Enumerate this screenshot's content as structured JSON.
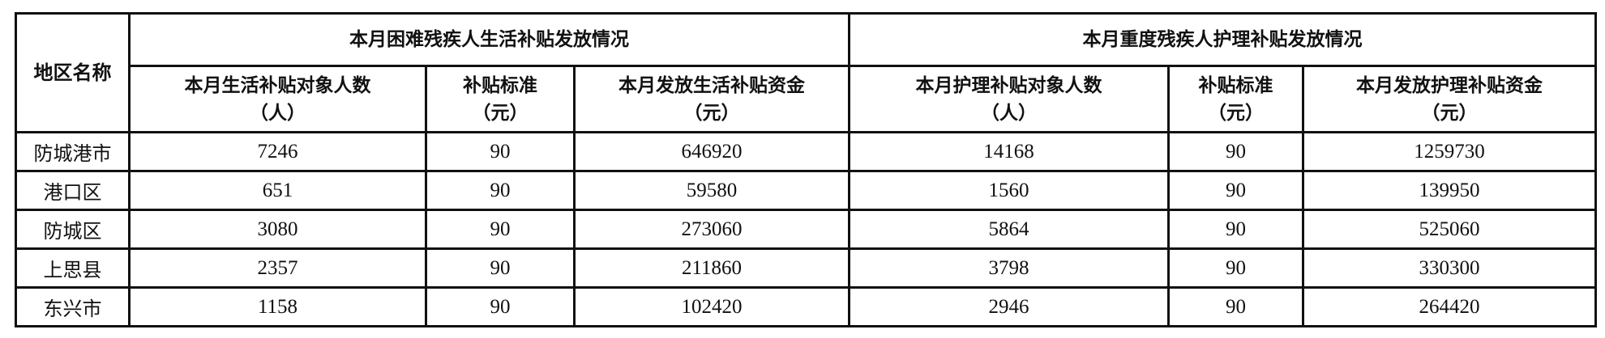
{
  "table": {
    "region_header": "地区名称",
    "group_headers": [
      "本月困难残疾人生活补贴发放情况",
      "本月重度残疾人护理补贴发放情况"
    ],
    "columns": [
      {
        "label": "本月生活补贴对象人数",
        "unit": "（人）"
      },
      {
        "label": "补贴标准",
        "unit": "（元）"
      },
      {
        "label": "本月发放生活补贴资金",
        "unit": "（元）"
      },
      {
        "label": "本月护理补贴对象人数",
        "unit": "（人）"
      },
      {
        "label": "补贴标准",
        "unit": "（元）"
      },
      {
        "label": "本月发放护理补贴资金",
        "unit": "（元）"
      }
    ],
    "rows": [
      {
        "region": "防城港市",
        "values": [
          "7246",
          "90",
          "646920",
          "14168",
          "90",
          "1259730"
        ]
      },
      {
        "region": "港口区",
        "values": [
          "651",
          "90",
          "59580",
          "1560",
          "90",
          "139950"
        ]
      },
      {
        "region": "防城区",
        "values": [
          "3080",
          "90",
          "273060",
          "5864",
          "90",
          "525060"
        ]
      },
      {
        "region": "上思县",
        "values": [
          "2357",
          "90",
          "211860",
          "3798",
          "90",
          "330300"
        ]
      },
      {
        "region": "东兴市",
        "values": [
          "1158",
          "90",
          "102420",
          "2946",
          "90",
          "264420"
        ]
      }
    ]
  }
}
